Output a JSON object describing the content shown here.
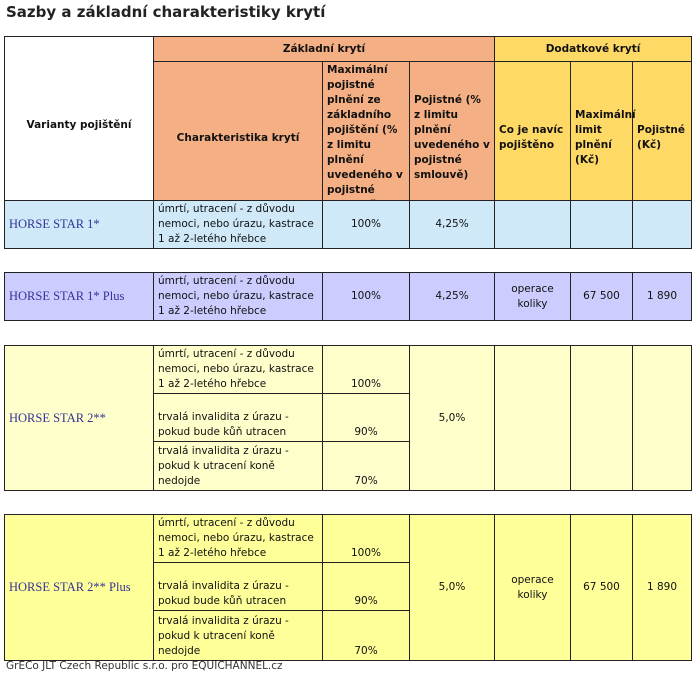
{
  "title": "Sazby a základní charakteristiky krytí",
  "header": {
    "variants": "Varianty pojištění",
    "basic": "Základní krytí",
    "additional": "Dodatkové krytí",
    "characteristic": "Charakteristika krytí",
    "max_basic": "Maximální pojistné plnění ze základního pojištění (% z limitu plnění uvedeného v pojistné smlouvě)",
    "premium_pct": "Pojistné (% z limitu plnění uvedeného v pojistné smlouvě)",
    "extra_what": "Co je navíc pojištěno",
    "extra_limit": "Maximální limit plnění (Kč)",
    "extra_premium": "Pojistné (Kč)"
  },
  "texts": {
    "death": "úmrtí, utracení - z důvodu nemoci, nebo úrazu, kastrace 1 až 2-letého hřebce",
    "inval_kill": "trvalá invalidita z úrazu - pokud bude kůň utracen",
    "inval_nokill": "trvalá invalidita z úrazu - pokud k utracení koně nedojde"
  },
  "rows": [
    {
      "name": "HORSE STAR 1*",
      "max": "100%",
      "premium": "4,25%",
      "extra": "",
      "limit": "",
      "extra_premium": "",
      "color": "#CFE9F9"
    },
    {
      "name": "HORSE STAR 1* Plus",
      "max": "100%",
      "premium": "4,25%",
      "extra": "operace koliky",
      "limit": "67 500",
      "extra_premium": "1 890",
      "color": "#CCCCFF"
    },
    {
      "name": "HORSE STAR 2**",
      "max": [
        "100%",
        "90%",
        "70%"
      ],
      "premium": "5,0%",
      "extra": "",
      "limit": "",
      "extra_premium": "",
      "color": "#FFFFCC"
    },
    {
      "name": "HORSE STAR 2** Plus",
      "max": [
        "100%",
        "90%",
        "70%"
      ],
      "premium": "5,0%",
      "extra": "operace koliky",
      "limit": "67 500",
      "extra_premium": "1 890",
      "color": "#FFFF99"
    }
  ],
  "footer": "GrECo JLT Czech Republic s.r.o. pro EQUICHANNEL.cz"
}
